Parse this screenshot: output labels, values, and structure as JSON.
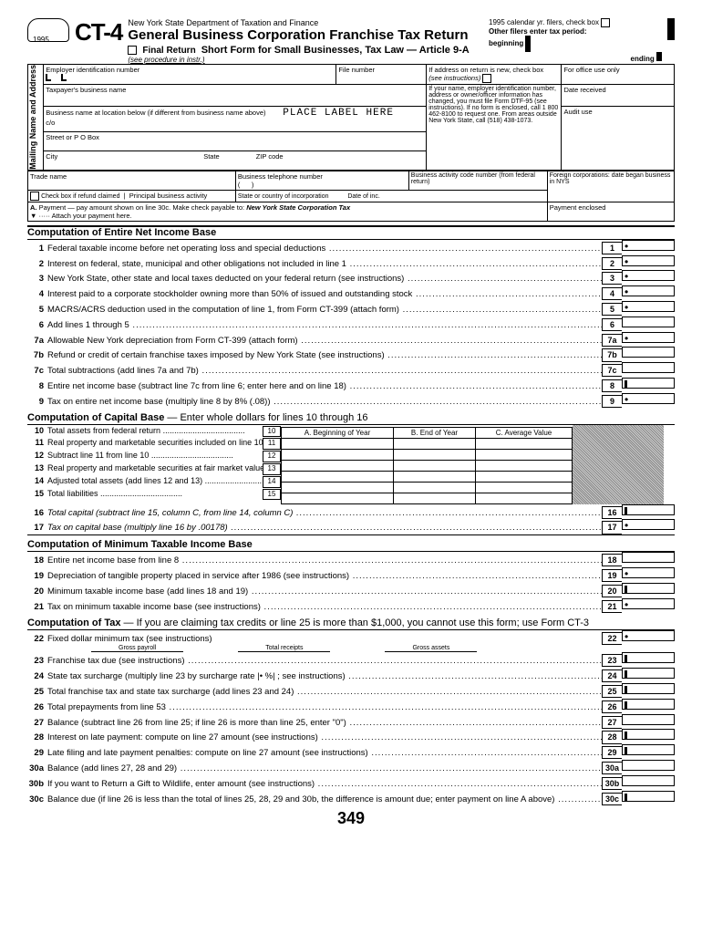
{
  "hdr": {
    "year": "1995",
    "form": "CT-4",
    "dept": "New York State Department of Taxation and Finance",
    "title": "General Business Corporation Franchise Tax Return",
    "short": "Short Form for Small Businesses, Tax Law — Article 9-A",
    "final": "Final Return",
    "proc": "(see procedure in instr.)",
    "cal": "1995 calendar yr. filers, check box",
    "other": "Other filers enter tax period:",
    "beg": "beginning",
    "end": "ending"
  },
  "idbox": {
    "ein": "Employer identification number",
    "file": "File number",
    "addr": "If address on return is new, check box",
    "addri": "(see instructions)",
    "office": "For office use only",
    "tbn": "Taxpayer's business name",
    "bloc": "Business name at location below (if different from business name above)",
    "place": "PLACE LABEL HERE",
    "co": "c/o",
    "street": "Street or P O Box",
    "city": "City",
    "state": "State",
    "zip": "ZIP code",
    "name_chg": "If your name, employer identification number, address or owner/officer information has changed, you must file Form DTF-95 (see instructions). If no form is enclosed, call 1 800 462-8100 to request one. From areas outside New York State, call (518) 438-1073.",
    "date_rcv": "Date received",
    "audit": "Audit use",
    "side": "Mailing Name\nand Address"
  },
  "row2": {
    "trade": "Trade name",
    "btel": "Business telephone number",
    "bac": "Business activity code number (from federal return)",
    "refund": "Check box if refund claimed",
    "pba": "Principal business activity",
    "soc": "State or country of incorporation",
    "doi": "Date of inc.",
    "fc": "Foreign corporations: date began business in NYS",
    "pe": "Payment enclosed"
  },
  "payA": {
    "lbl": "A.",
    "txt": "Payment — pay amount shown on line 30c. Make check payable to:",
    "bold": "New York State Corporation Tax",
    "attach": "Attach your payment here."
  },
  "sec1": {
    "h": "Computation of Entire Net Income Base",
    "lines": [
      {
        "n": "1",
        "t": "Federal taxable income before net operating loss and special deductions",
        "b": "1",
        "s": "dot"
      },
      {
        "n": "2",
        "t": "Interest on federal, state, municipal and other obligations not included in line 1",
        "b": "2",
        "s": "dot"
      },
      {
        "n": "3",
        "t": "New York State, other state and local taxes deducted on your federal return (see instructions)",
        "b": "3",
        "s": "dot"
      },
      {
        "n": "4",
        "t": "Interest paid to a corporate stockholder owning more than 50% of issued and outstanding stock",
        "b": "4",
        "s": "dot"
      },
      {
        "n": "5",
        "t": "MACRS/ACRS deduction used in the computation of line 1, from Form CT-399 (attach form)",
        "b": "5",
        "s": "dot"
      },
      {
        "n": "6",
        "t": "Add lines 1 through 5",
        "b": "6",
        "s": ""
      },
      {
        "n": "7a",
        "t": "Allowable New York depreciation from Form CT-399 (attach form)",
        "b": "7a",
        "s": "dot"
      },
      {
        "n": "7b",
        "t": "Refund or credit of certain franchise taxes imposed by New York State (see instructions)",
        "b": "7b",
        "s": ""
      },
      {
        "n": "7c",
        "t": "Total subtractions (add lines 7a and 7b)",
        "b": "7c",
        "s": ""
      },
      {
        "n": "8",
        "t": "Entire net income base (subtract line 7c from line 6; enter here and on line 18)",
        "b": "8",
        "s": "bar"
      },
      {
        "n": "9",
        "t": "Tax on entire net income base (multiply line 8 by 8% (.08))",
        "b": "9",
        "s": "dot"
      }
    ]
  },
  "sec2": {
    "h": "Computation of Capital Base",
    "sub": "— Enter whole dollars for lines 10 through 16",
    "cols": [
      "A. Beginning of Year",
      "B. End of Year",
      "C. Average Value"
    ],
    "rows": [
      {
        "n": "10",
        "t": "Total assets from federal return"
      },
      {
        "n": "11",
        "t": "Real property and marketable securities included on line 10"
      },
      {
        "n": "12",
        "t": "Subtract line 11 from line 10"
      },
      {
        "n": "13",
        "t": "Real property and marketable securities at fair market value"
      },
      {
        "n": "14",
        "t": "Adjusted total assets (add lines 12 and 13)"
      },
      {
        "n": "15",
        "t": "Total liabilities"
      }
    ],
    "l16": "Total capital (subtract line 15, column C, from line 14, column C)",
    "l17": "Tax on capital base (multiply line 16 by .00178)"
  },
  "sec3": {
    "h": "Computation of Minimum Taxable Income Base",
    "lines": [
      {
        "n": "18",
        "t": "Entire net income base from line 8",
        "b": "18",
        "s": ""
      },
      {
        "n": "19",
        "t": "Depreciation of tangible property placed in service after 1986 (see instructions)",
        "b": "19",
        "s": "dot"
      },
      {
        "n": "20",
        "t": "Minimum taxable income base (add lines 18 and 19)",
        "b": "20",
        "s": "bar"
      },
      {
        "n": "21",
        "t": "Tax on minimum taxable income base (see instructions)",
        "b": "21",
        "s": "dot"
      }
    ]
  },
  "sec4": {
    "h": "Computation of Tax",
    "sub": "— If you are claiming tax credits or line 25 is more than $1,000, you cannot use this form; use Form CT-3",
    "l22": "Fixed dollar minimum tax (see instructions)",
    "g": [
      "Gross payroll",
      "Total receipts",
      "Gross assets"
    ],
    "lines": [
      {
        "n": "23",
        "t": "Franchise tax due (see instructions)",
        "b": "23",
        "s": "bar"
      },
      {
        "n": "24",
        "t": "State tax surcharge (multiply line 23 by surcharge rate |•        %| ; see instructions)",
        "b": "24",
        "s": "bar"
      },
      {
        "n": "25",
        "t": "Total franchise tax and state tax surcharge (add lines 23 and 24)",
        "b": "25",
        "s": "bar"
      },
      {
        "n": "26",
        "t": "Total prepayments from line 53",
        "b": "26",
        "s": "bar"
      },
      {
        "n": "27",
        "t": "Balance (subtract line 26 from line 25; if line 26 is more than line 25, enter \"0\")",
        "b": "27",
        "s": ""
      },
      {
        "n": "28",
        "t": "Interest on late payment: compute on line 27 amount (see instructions)",
        "b": "28",
        "s": "bar"
      },
      {
        "n": "29",
        "t": "Late filing and late payment penalties: compute on line 27 amount (see instructions)",
        "b": "29",
        "s": "bar"
      },
      {
        "n": "30a",
        "t": "Balance (add lines 27, 28 and 29)",
        "b": "30a",
        "s": ""
      },
      {
        "n": "30b",
        "t": "If you want to Return a Gift to Wildlife, enter amount (see instructions)",
        "b": "30b",
        "s": ""
      },
      {
        "n": "30c",
        "t": "Balance due (if line 26 is less than the total of lines 25, 28, 29 and 30b, the difference is amount due; enter payment on line A above)",
        "b": "30c",
        "s": "bar"
      }
    ]
  },
  "pnum": "349"
}
